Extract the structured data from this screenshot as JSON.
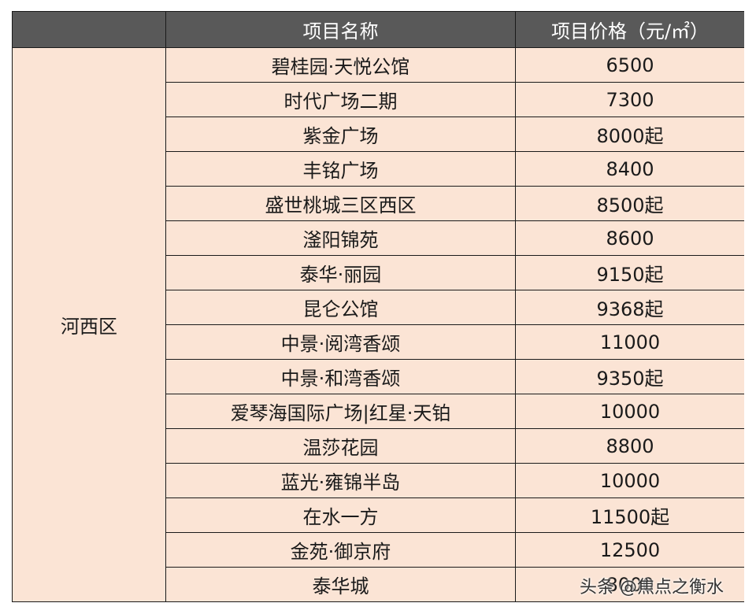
{
  "header": {
    "blank": "",
    "name": "项目名称",
    "price": "项目价格（元/㎡）"
  },
  "district": "河西区",
  "rows": [
    {
      "name": "碧桂园·天悦公馆",
      "price": "6500"
    },
    {
      "name": "时代广场二期",
      "price": "7300"
    },
    {
      "name": "紫金广场",
      "price": "8000起"
    },
    {
      "name": "丰铭广场",
      "price": "8400"
    },
    {
      "name": "盛世桃城三区西区",
      "price": "8500起"
    },
    {
      "name": "滏阳锦苑",
      "price": "8600"
    },
    {
      "name": "泰华·丽园",
      "price": "9150起"
    },
    {
      "name": "昆仑公馆",
      "price": "9368起"
    },
    {
      "name": "中景·阅湾香颂",
      "price": "11000"
    },
    {
      "name": "中景·和湾香颂",
      "price": "9350起"
    },
    {
      "name": "爱琴海国际广场|红星·天铂",
      "price": "10000"
    },
    {
      "name": "温莎花园",
      "price": "8800"
    },
    {
      "name": "蓝光·雍锦半岛",
      "price": "10000"
    },
    {
      "name": "在水一方",
      "price": "11500起"
    },
    {
      "name": "金苑·御京府",
      "price": "12500"
    },
    {
      "name": "泰华城",
      "price": "8000"
    }
  ],
  "watermark": "头条 @焦点之衡水",
  "colors": {
    "header_bg": "#595959",
    "header_text": "#ffffff",
    "cell_bg": "#fbe4d5",
    "border": "#1a1a1a"
  }
}
